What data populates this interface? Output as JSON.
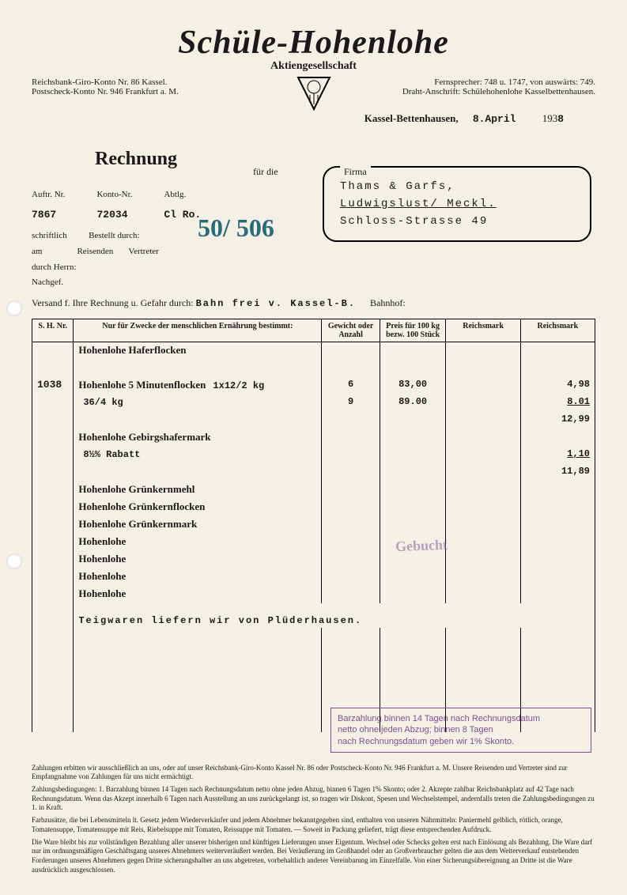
{
  "company": {
    "name": "Schüle-Hohenlohe",
    "subtitle": "Aktiengesellschaft",
    "bank_left_1": "Reichsbank-Giro-Konto Nr. 86 Kassel.",
    "bank_left_2": "Postscheck-Konto Nr. 946 Frankfurt a. M.",
    "phone_right_1": "Fernsprecher: 748 u. 1747, von auswärts: 749.",
    "phone_right_2": "Draht-Anschrift: Schülehohenlohe Kasselbettenhausen."
  },
  "location_date": {
    "location": "Kassel-Bettenhausen,",
    "date_typed": "8.April",
    "year_prefix": "193",
    "year_suffix": "8"
  },
  "rechnung_label": "Rechnung",
  "fuer_die": "für die",
  "order": {
    "auftr_label": "Auftr. Nr.",
    "auftr_value": "7867",
    "konto_label": "Konto-Nr.",
    "konto_value": "72034",
    "abtlg_label": "Abtlg.",
    "abtlg_value": "Cl Ro.",
    "schriftlich": "schriftlich",
    "am": "am",
    "bestellt_durch": "Bestellt durch:",
    "reisenden": "Reisenden",
    "vertreter": "Vertreter",
    "durch_herrn": "durch Herrn:",
    "nachgef": "Nachgef."
  },
  "firma": {
    "label": "Firma",
    "name": "Thams & Garfs,",
    "city": "Ludwigslust/ Meckl.",
    "street": "Schloss-Strasse 49"
  },
  "versand": {
    "label": "Versand f. Ihre Rechnung u. Gefahr durch:",
    "value": "Bahn frei v. Kassel-B.",
    "bahnhof_label": "Bahnhof:"
  },
  "table": {
    "headers": {
      "sh": "S. H. Nr.",
      "desc": "Nur für Zwecke der menschlichen Ernährung bestimmt:",
      "qty": "Gewicht oder Anzahl",
      "price": "Preis für 100 kg bezw. 100 Stück",
      "rm1": "Reichsmark",
      "rm2": "Reichsmark"
    },
    "sh_number": "1038",
    "rows": [
      {
        "desc": "Hohenlohe Haferflocken",
        "qty": "",
        "price": "",
        "rm2": ""
      },
      {
        "desc": "",
        "qty": "",
        "price": "",
        "rm2": ""
      },
      {
        "desc": "Hohenlohe 5 Minutenflocken",
        "spec": "1x12/2 kg",
        "qty": "6",
        "price": "83,00",
        "rm2": "4,98"
      },
      {
        "desc": "",
        "spec": "36/4 kg",
        "qty": "9",
        "price": "89.00",
        "rm2": "8.01",
        "underline": true
      },
      {
        "desc": "",
        "qty": "",
        "price": "",
        "rm2": "12,99"
      },
      {
        "desc": "Hohenlohe Gebirgshafermark",
        "qty": "",
        "price": "",
        "rm2": ""
      },
      {
        "desc": "",
        "spec": "8½% Rabatt",
        "qty": "",
        "price": "",
        "rm2": "1,10",
        "underline": true
      },
      {
        "desc": "",
        "qty": "",
        "price": "",
        "rm2": "11,89"
      },
      {
        "desc": "Hohenlohe Grünkernmehl",
        "qty": "",
        "price": "",
        "rm2": ""
      },
      {
        "desc": "Hohenlohe Grünkernflocken",
        "qty": "",
        "price": "",
        "rm2": ""
      },
      {
        "desc": "Hohenlohe Grünkernmark",
        "qty": "",
        "price": "",
        "rm2": ""
      },
      {
        "desc": "Hohenlohe",
        "qty": "",
        "price": "",
        "rm2": ""
      },
      {
        "desc": "Hohenlohe",
        "qty": "",
        "price": "",
        "rm2": ""
      },
      {
        "desc": "Hohenlohe",
        "qty": "",
        "price": "",
        "rm2": ""
      },
      {
        "desc": "Hohenlohe",
        "qty": "",
        "price": "",
        "rm2": ""
      }
    ],
    "footer_note": "Teigwaren liefern wir von Plüderhausen."
  },
  "stamp": {
    "line1": "Barzahlung binnen 14 Tagen nach Rechnungsdatum",
    "line2": "netto ohne jeden Abzug; binnen 8 Tagen",
    "line3": "nach Rechnungsdatum geben wir 1% Skonto."
  },
  "gebucht": "Gebucht",
  "scribble_text": "50/ 506",
  "footer": {
    "p1": "Zahlungen erbitten wir ausschließlich an uns, oder auf unser Reichsbank-Giro-Konto Kassel Nr. 86 oder Postscheck-Konto Nr. 946 Frankfurt a. M. Unsere Reisenden und Vertreter sind zur Empfangnahme von Zahlungen für uns nicht ermächtigt.",
    "p2": "Zahlungsbedingungen: 1. Barzahlung binnen 14 Tagen nach Rechnungsdatum netto ohne jeden Abzug, binnen 6 Tagen 1% Skonto; oder 2. Akzepte zahlbar Reichsbankplatz auf 42 Tage nach Rechnungsdatum. Wenn das Akzept innerhalb 6 Tagen nach Ausstellung an uns zurückgelangt ist, so tragen wir Diskont, Spesen und Wechselstempel, andernfalls treten die Zahlungsbedingungen zu 1. in Kraft.",
    "p3": "Farbzusätze, die bei Lebensmitteln lt. Gesetz jedem Wiederverkäufer und jedem Abnehmer bekanntgegeben sind, enthalten von unseren Nährmitteln: Paniermehl gelblich, rötlich, orange, Tomatensuppe, Tomatensuppe mit Reis, Riebelsuppe mit Tomaten, Reissuppe mit Tomaten. — Soweit in Packung geliefert, trägt diese entsprechenden Aufdruck.",
    "p4": "Die Ware bleibt bis zur vollständigen Bezahlung aller unserer bisherigen und künftigen Lieferungen unser Eigentum. Wechsel oder Schecks gelten erst nach Einlösung als Bezahlung. Die Ware darf nur im ordnungsmäßigen Geschäftsgang unseres Abnehmers weiterveräußert werden. Bei Veräußerung im Großhandel oder an Großverbraucher gelten die aus dem Weiterverkauf entstehenden Forderungen unseres Abnehmers gegen Dritte sicherungshalber an uns abgetreten, vorbehaltlich anderer Vereinbarung im Einzelfalle. Von einer Sicherungsübereignung an Dritte ist die Ware ausdrücklich ausgeschlossen."
  },
  "colors": {
    "paper": "#f5f0e6",
    "ink": "#1a1a1a",
    "stamp": "#7a5090",
    "scribble": "#2a6b7a"
  }
}
